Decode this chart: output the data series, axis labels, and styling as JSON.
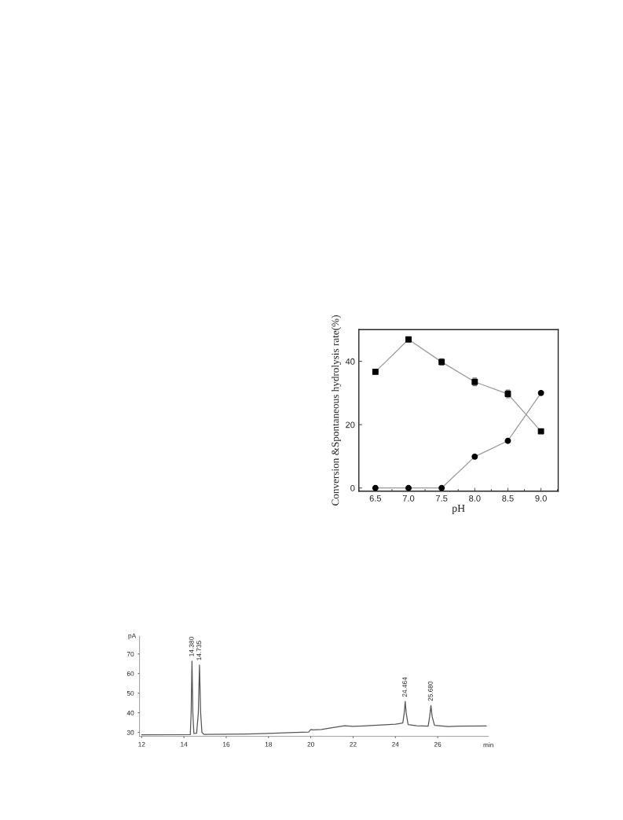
{
  "chart_data": [
    {
      "type": "line",
      "xlabel": "pH",
      "ylabel": "Conversion &Spontaneous hydrolysis rate(%)",
      "x": [
        6.5,
        7.0,
        7.5,
        8.0,
        8.5,
        9.0
      ],
      "xlim": [
        6.25,
        9.26
      ],
      "ylim": [
        -1,
        50
      ],
      "xticks": [
        {
          "value": 6.5,
          "label": "6.5"
        },
        {
          "value": 7.0,
          "label": "7.0"
        },
        {
          "value": 7.5,
          "label": "7.5"
        },
        {
          "value": 8.0,
          "label": "8.0"
        },
        {
          "value": 8.5,
          "label": "8.5"
        },
        {
          "value": 9.0,
          "label": "9.0"
        }
      ],
      "yticks": [
        0,
        20,
        40
      ],
      "grid": false,
      "legend": false,
      "line_style": "solid",
      "series": [
        {
          "color": "#000000",
          "marker": "square",
          "values": [
            36.7,
            46.9,
            39.8,
            33.5,
            29.7,
            17.9
          ],
          "errors": [
            null,
            null,
            1.0,
            1.2,
            1.2,
            null
          ]
        },
        {
          "color": "#000000",
          "marker": "circle",
          "values": [
            0,
            0,
            0,
            9.9,
            14.9,
            30.0
          ]
        }
      ]
    },
    {
      "type": "line",
      "xlabel": "min",
      "ylabel": "pA",
      "xlim": [
        11.9,
        28.4
      ],
      "ylim": [
        28,
        79
      ],
      "xticks": [
        12,
        14,
        16,
        18,
        20,
        22,
        24,
        26
      ],
      "yticks": [
        30,
        40,
        50,
        60,
        70
      ],
      "grid": false,
      "legend": false,
      "marker": "none",
      "line_style": "solid",
      "series": [
        {
          "color": "#555555",
          "x": [
            12,
            14.3,
            14.34,
            14.38,
            14.42,
            14.47,
            14.6,
            14.68,
            14.735,
            14.79,
            14.85,
            14.95,
            16,
            17,
            18,
            19,
            19.9,
            20.0,
            20.1,
            20.5,
            21,
            21.6,
            22,
            22.5,
            23,
            24,
            24.35,
            24.42,
            24.464,
            24.51,
            24.6,
            25,
            25.55,
            25.62,
            25.68,
            25.74,
            25.85,
            26.5,
            27,
            28.3
          ],
          "values": [
            28.8,
            28.9,
            40,
            66.4,
            40,
            29.5,
            29.6,
            40,
            64.4,
            40,
            30,
            29.0,
            29.1,
            29.2,
            29.5,
            29.9,
            30.2,
            31.5,
            31.3,
            31.5,
            32.4,
            33.4,
            33.1,
            33.3,
            33.6,
            34.2,
            34.8,
            40,
            45.8,
            40,
            34.0,
            33.4,
            33.2,
            38,
            43.7,
            38,
            33.6,
            33.0,
            33.2,
            33.3
          ]
        }
      ],
      "annotations": [
        {
          "text": "14.380",
          "x": 14.38,
          "y": 66.4
        },
        {
          "text": "14.735",
          "x": 14.735,
          "y": 64.4
        },
        {
          "text": "24.464",
          "x": 24.464,
          "y": 45.8
        },
        {
          "text": "25.680",
          "x": 25.68,
          "y": 43.7
        }
      ]
    }
  ]
}
